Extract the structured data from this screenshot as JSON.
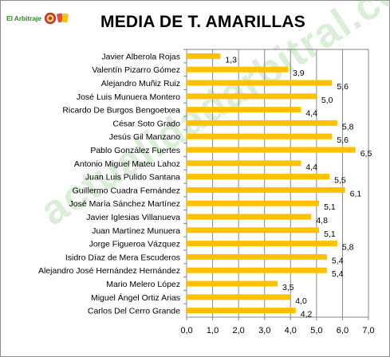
{
  "brand": {
    "text": "El Arbitraje",
    "logo_icon": "referee-cards-logo"
  },
  "watermark": "actualidadarbitral.com",
  "chart_data": {
    "type": "bar",
    "orientation": "horizontal",
    "title": "MEDIA DE T. AMARILLAS",
    "xlabel": "",
    "ylabel": "",
    "xlim": [
      0,
      7
    ],
    "xticks": [
      "0,0",
      "1,0",
      "2,0",
      "3,0",
      "4,0",
      "5,0",
      "6,0",
      "7,0"
    ],
    "grid": "vertical",
    "bar_color": "#FFC000",
    "categories": [
      "Javier Alberola Rojas",
      "Valentín Pizarro Gómez",
      "Alejandro Muñiz Ruiz",
      "José Luis Munuera Montero",
      "Ricardo De Burgos Bengoetxea",
      "César Soto Grado",
      "Jesús Gil Manzano",
      "Pablo González Fuertes",
      "Antonio Miguel Mateu Lahoz",
      "Juan Luis Pulido Santana",
      "Guillermo Cuadra Fernández",
      "José María Sánchez Martínez",
      "Javier Iglesias Villanueva",
      "Juan Martínez Munuera",
      "Jorge Figueroa Vázquez",
      "Isidro Díaz de Mera Escuderos",
      "Alejandro José Hernández Hernández",
      "Mario Melero López",
      "Miguel Ángel Ortiz Arias",
      "Carlos Del Cerro Grande"
    ],
    "values": [
      1.3,
      3.9,
      5.6,
      5.0,
      4.4,
      5.8,
      5.6,
      6.5,
      4.4,
      5.5,
      6.1,
      5.1,
      4.8,
      5.1,
      5.8,
      5.4,
      5.4,
      3.5,
      4.0,
      4.2
    ],
    "data_labels": [
      "1,3",
      "3,9",
      "5,6",
      "5,0",
      "4,4",
      "5,8",
      "5,6",
      "6,5",
      "4,4",
      "5,5",
      "6,1",
      "5,1",
      "4,8",
      "5,1",
      "5,8",
      "5,4",
      "5,4",
      "3,5",
      "4,0",
      "4,2"
    ]
  }
}
